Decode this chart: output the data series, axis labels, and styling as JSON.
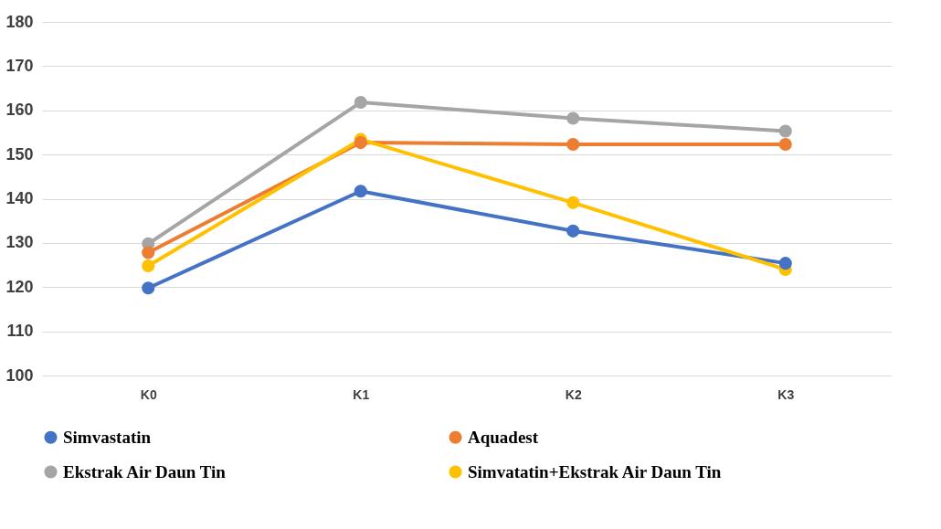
{
  "chart_data": {
    "type": "line",
    "categories": [
      "K0",
      "K1",
      "K2",
      "K3"
    ],
    "series": [
      {
        "name": "Simvastatin",
        "color": "#4472c4",
        "values": [
          119.8,
          141.7,
          132.7,
          125.4
        ]
      },
      {
        "name": "Aquadest",
        "color": "#ed7d31",
        "values": [
          127.8,
          152.7,
          152.3,
          152.3
        ]
      },
      {
        "name": "Ekstrak Air Daun Tin",
        "color": "#a5a5a5",
        "values": [
          129.8,
          161.8,
          158.2,
          155.3
        ]
      },
      {
        "name": "Simvatatin+Ekstrak Air Daun Tin",
        "color": "#ffc000",
        "values": [
          124.8,
          153.4,
          139.1,
          124.0
        ]
      }
    ],
    "ylim": [
      100,
      180
    ],
    "yticks": [
      100,
      110,
      120,
      130,
      140,
      150,
      160,
      170,
      180
    ],
    "grid": "y",
    "legend": "bottom",
    "marker": "circle",
    "line_style": "solid"
  }
}
